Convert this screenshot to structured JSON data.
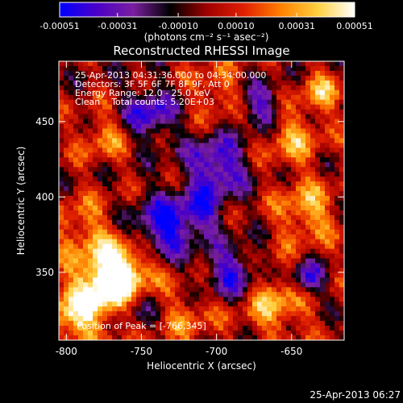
{
  "chart_data": {
    "type": "heatmap",
    "title": "Reconstructed RHESSI Image",
    "xlabel": "Heliocentric X (arcsec)",
    "ylabel": "Heliocentric Y (arcsec)",
    "xlim": [
      -805,
      -615
    ],
    "ylim": [
      305,
      490
    ],
    "x_ticks": [
      -800,
      -750,
      -700,
      -650
    ],
    "y_ticks": [
      350,
      400,
      450
    ],
    "x_tick_labels": [
      "-800",
      "-750",
      "-700",
      "-650"
    ],
    "y_tick_labels": [
      "350",
      "400",
      "450"
    ],
    "colorbar": {
      "tick_values": [
        -0.00051,
        -0.00031,
        -0.0001,
        0.0001,
        0.00031,
        0.00051
      ],
      "tick_labels": [
        "-0.00051",
        "-0.00031",
        "-0.00010",
        "0.00010",
        "0.00031",
        "0.00051"
      ],
      "units_label": "(photons cm⁻² s⁻¹ asec⁻²)",
      "range": [
        -0.00051,
        0.00051
      ],
      "stops": [
        "#0000ff",
        "#4a00c8",
        "#7a1fa0",
        "#000000",
        "#a00000",
        "#e02000",
        "#ff8000",
        "#ffd040",
        "#ffffff"
      ]
    },
    "annotations": {
      "time_range": "25-Apr-2013 04:31:36.000 to 04:34:00.000",
      "detectors": "Detectors: 3F 5F 6F 7F 8F 9F, Att 0",
      "energy": "Energy Range: 12.0 - 25.0 keV",
      "clean": "Clean    Total counts: 5.20E+03",
      "peak": "Position of Peak = [-766,345]"
    },
    "peak_position": [
      -766,
      345
    ],
    "grid": false
  },
  "footer": {
    "timestamp": "25-Apr-2013 06:27"
  }
}
